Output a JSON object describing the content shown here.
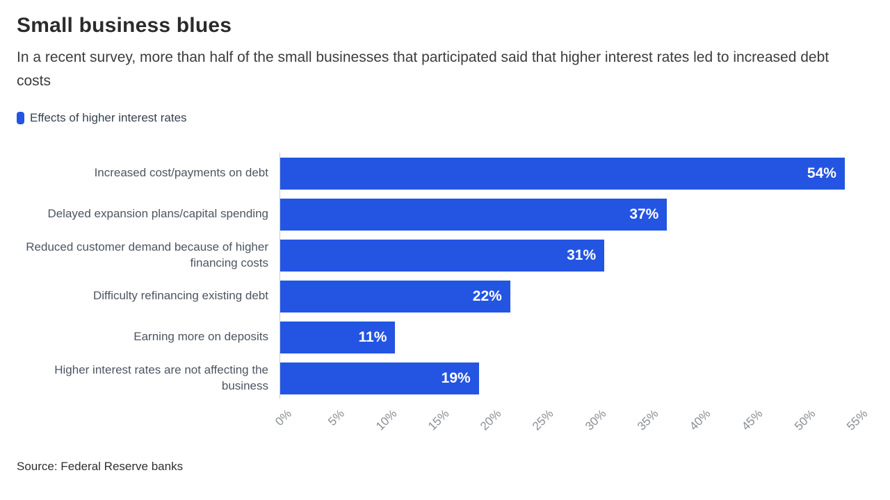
{
  "header": {
    "title": "Small business blues",
    "subtitle": "In a recent survey, more than half of the small businesses that participated said that higher interest rates led to increased debt costs"
  },
  "legend": {
    "label": "Effects of higher interest rates",
    "color": "#2355e2"
  },
  "chart_data": {
    "type": "bar",
    "orientation": "horizontal",
    "title": "Small business blues",
    "categories": [
      "Increased cost/payments on debt",
      "Delayed expansion plans/capital spending",
      "Reduced customer demand because of higher financing costs",
      "Difficulty refinancing existing debt",
      "Earning more on deposits",
      "Higher interest rates are not affecting the business"
    ],
    "values": [
      54,
      37,
      31,
      22,
      11,
      19
    ],
    "value_labels": [
      "54%",
      "37%",
      "31%",
      "22%",
      "11%",
      "19%"
    ],
    "x_ticks": [
      "0%",
      "5%",
      "10%",
      "15%",
      "20%",
      "25%",
      "30%",
      "35%",
      "40%",
      "45%",
      "50%",
      "55%"
    ],
    "xlim": [
      0,
      55
    ],
    "bar_color": "#2355e2",
    "legend_position": "top-left",
    "grid": "off"
  },
  "footer": {
    "source": "Source: Federal Reserve banks"
  }
}
